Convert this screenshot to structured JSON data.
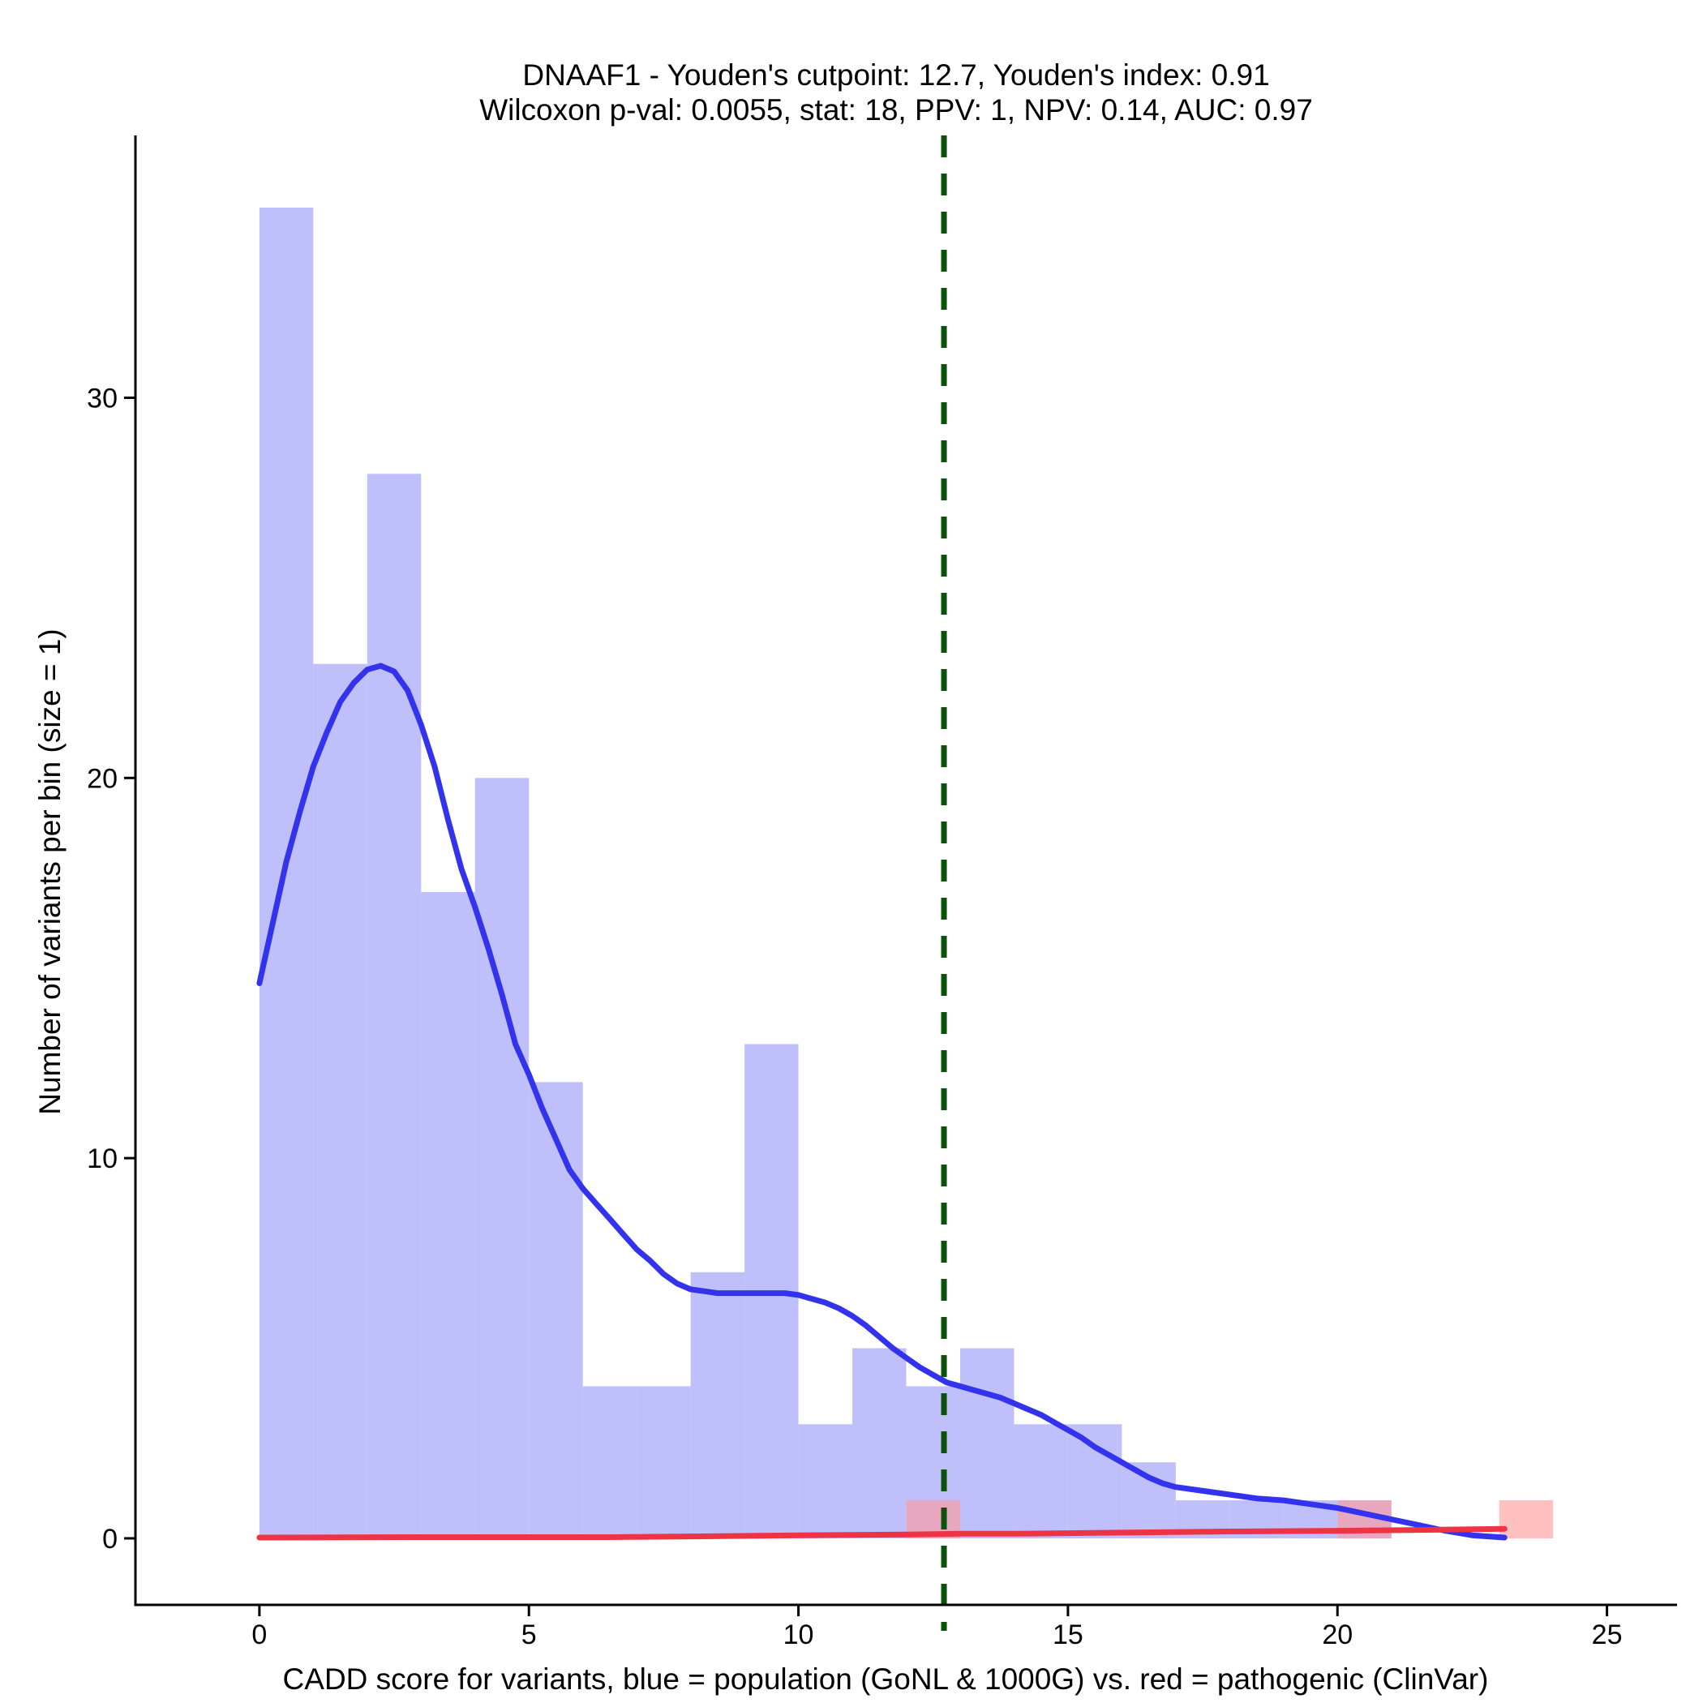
{
  "chart_data": {
    "type": "bar",
    "title": "DNAAF1 - Youden's cutpoint: 12.7, Youden's index: 0.91",
    "subtitle": "Wilcoxon p-val: 0.0055, stat: 18, PPV: 1, NPV: 0.14, AUC: 0.97",
    "xlabel": "CADD score for variants, blue = population (GoNL & 1000G) vs. red = pathogenic (ClinVar)",
    "ylabel": "Number of variants per bin (size = 1)",
    "xlim": [
      -2.3,
      26.3
    ],
    "ylim": [
      -1.75,
      36.9
    ],
    "xticks": [
      0,
      5,
      10,
      15,
      20,
      25
    ],
    "yticks": [
      0,
      10,
      20,
      30
    ],
    "bin_size": 1,
    "cutpoint": 12.7,
    "histograms": [
      {
        "name": "population (GoNL & 1000G)",
        "color": "#bfbffc",
        "bins": [
          {
            "x0": 0,
            "x1": 1,
            "count": 35
          },
          {
            "x0": 1,
            "x1": 2,
            "count": 23
          },
          {
            "x0": 2,
            "x1": 3,
            "count": 28
          },
          {
            "x0": 3,
            "x1": 4,
            "count": 17
          },
          {
            "x0": 4,
            "x1": 5,
            "count": 20
          },
          {
            "x0": 5,
            "x1": 6,
            "count": 12
          },
          {
            "x0": 6,
            "x1": 7,
            "count": 4
          },
          {
            "x0": 7,
            "x1": 8,
            "count": 4
          },
          {
            "x0": 8,
            "x1": 9,
            "count": 7
          },
          {
            "x0": 9,
            "x1": 10,
            "count": 13
          },
          {
            "x0": 10,
            "x1": 11,
            "count": 3
          },
          {
            "x0": 11,
            "x1": 12,
            "count": 5
          },
          {
            "x0": 12,
            "x1": 13,
            "count": 4
          },
          {
            "x0": 13,
            "x1": 14,
            "count": 5
          },
          {
            "x0": 14,
            "x1": 15,
            "count": 3
          },
          {
            "x0": 15,
            "x1": 16,
            "count": 3
          },
          {
            "x0": 16,
            "x1": 17,
            "count": 2
          },
          {
            "x0": 17,
            "x1": 18,
            "count": 1
          },
          {
            "x0": 18,
            "x1": 19,
            "count": 1
          },
          {
            "x0": 19,
            "x1": 20,
            "count": 1
          },
          {
            "x0": 20,
            "x1": 21,
            "count": 1
          },
          {
            "x0": 21,
            "x1": 22,
            "count": 0
          },
          {
            "x0": 22,
            "x1": 23,
            "count": 0
          }
        ]
      },
      {
        "name": "pathogenic (ClinVar)",
        "color": "#ff9999",
        "bins": [
          {
            "x0": 12,
            "x1": 13,
            "count": 1
          },
          {
            "x0": 20,
            "x1": 21,
            "count": 1
          },
          {
            "x0": 23,
            "x1": 24,
            "count": 1
          }
        ]
      }
    ],
    "density_lines": [
      {
        "name": "population density",
        "color": "#3333ee",
        "points": [
          [
            0,
            14.6
          ],
          [
            0.25,
            16.2
          ],
          [
            0.5,
            17.8
          ],
          [
            0.75,
            19.1
          ],
          [
            1,
            20.3
          ],
          [
            1.25,
            21.2
          ],
          [
            1.5,
            22.0
          ],
          [
            1.75,
            22.5
          ],
          [
            2,
            22.85
          ],
          [
            2.25,
            22.95
          ],
          [
            2.5,
            22.8
          ],
          [
            2.75,
            22.3
          ],
          [
            3,
            21.4
          ],
          [
            3.25,
            20.3
          ],
          [
            3.5,
            18.9
          ],
          [
            3.75,
            17.6
          ],
          [
            4,
            16.6
          ],
          [
            4.25,
            15.5
          ],
          [
            4.5,
            14.3
          ],
          [
            4.75,
            13.0
          ],
          [
            5,
            12.2
          ],
          [
            5.25,
            11.3
          ],
          [
            5.5,
            10.5
          ],
          [
            5.75,
            9.7
          ],
          [
            6,
            9.2
          ],
          [
            6.25,
            8.8
          ],
          [
            6.5,
            8.4
          ],
          [
            6.75,
            8.0
          ],
          [
            7,
            7.6
          ],
          [
            7.25,
            7.3
          ],
          [
            7.5,
            6.95
          ],
          [
            7.75,
            6.7
          ],
          [
            8,
            6.55
          ],
          [
            8.25,
            6.5
          ],
          [
            8.5,
            6.45
          ],
          [
            8.75,
            6.45
          ],
          [
            9,
            6.45
          ],
          [
            9.25,
            6.45
          ],
          [
            9.5,
            6.45
          ],
          [
            9.75,
            6.45
          ],
          [
            10,
            6.4
          ],
          [
            10.25,
            6.3
          ],
          [
            10.5,
            6.2
          ],
          [
            10.75,
            6.05
          ],
          [
            11,
            5.85
          ],
          [
            11.25,
            5.6
          ],
          [
            11.5,
            5.3
          ],
          [
            11.75,
            5.0
          ],
          [
            12,
            4.75
          ],
          [
            12.25,
            4.5
          ],
          [
            12.5,
            4.3
          ],
          [
            12.75,
            4.1
          ],
          [
            13,
            4.0
          ],
          [
            13.25,
            3.9
          ],
          [
            13.5,
            3.8
          ],
          [
            13.75,
            3.7
          ],
          [
            14,
            3.55
          ],
          [
            14.25,
            3.4
          ],
          [
            14.5,
            3.25
          ],
          [
            14.75,
            3.05
          ],
          [
            15,
            2.85
          ],
          [
            15.25,
            2.65
          ],
          [
            15.5,
            2.4
          ],
          [
            15.75,
            2.2
          ],
          [
            16,
            2.0
          ],
          [
            16.25,
            1.8
          ],
          [
            16.5,
            1.6
          ],
          [
            16.75,
            1.45
          ],
          [
            17,
            1.35
          ],
          [
            17.5,
            1.25
          ],
          [
            18,
            1.15
          ],
          [
            18.5,
            1.05
          ],
          [
            19,
            1.0
          ],
          [
            19.5,
            0.9
          ],
          [
            20,
            0.8
          ],
          [
            20.5,
            0.65
          ],
          [
            21,
            0.5
          ],
          [
            21.5,
            0.35
          ],
          [
            22,
            0.2
          ],
          [
            22.5,
            0.08
          ],
          [
            23.1,
            0.02
          ]
        ]
      },
      {
        "name": "pathogenic density",
        "color": "#ee3344",
        "points": [
          [
            0,
            0.02
          ],
          [
            3,
            0.03
          ],
          [
            6.5,
            0.03
          ],
          [
            8,
            0.05
          ],
          [
            10,
            0.08
          ],
          [
            12,
            0.1
          ],
          [
            13,
            0.12
          ],
          [
            14,
            0.12
          ],
          [
            16,
            0.15
          ],
          [
            18,
            0.18
          ],
          [
            20,
            0.2
          ],
          [
            21.5,
            0.22
          ],
          [
            23.1,
            0.25
          ]
        ]
      }
    ],
    "grid": false,
    "legend": "none"
  }
}
